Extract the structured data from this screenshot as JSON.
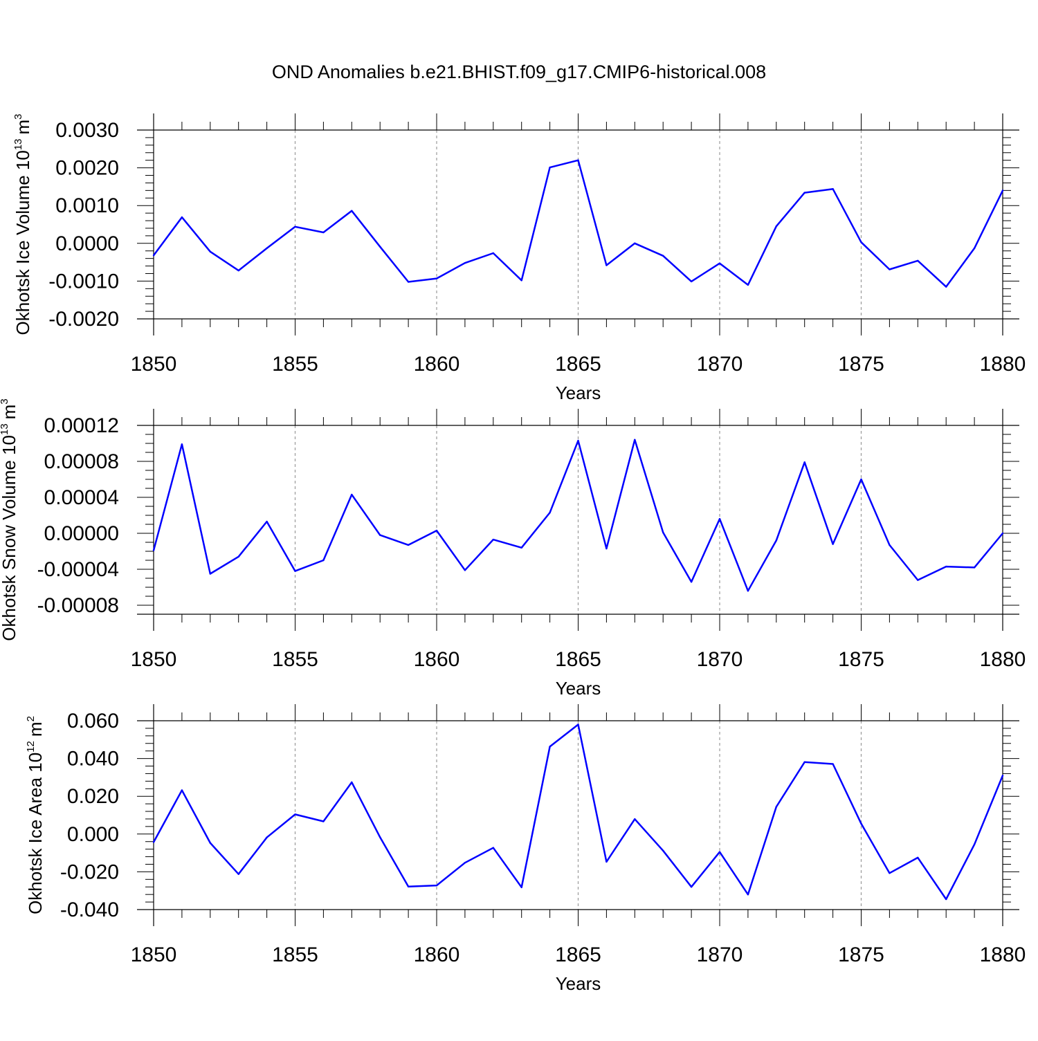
{
  "title": "OND Anomalies b.e21.BHIST.f09_g17.CMIP6-historical.008",
  "colors": {
    "line": "#0000ff",
    "grid": "#999999",
    "axis": "#000000"
  },
  "chart_data": [
    {
      "type": "line",
      "name": "ice-volume",
      "ylabel": {
        "text": "Okhotsk Ice Volume 10",
        "exponent": "13",
        "unit": "m",
        "unit_exponent": "3"
      },
      "xlabel": "Years",
      "xlim": [
        1850,
        1880
      ],
      "ylim": [
        -0.002,
        0.003
      ],
      "x_ticks": [
        "1850",
        "1855",
        "1860",
        "1865",
        "1870",
        "1875",
        "1880"
      ],
      "y_ticks": [
        {
          "value": 0.003,
          "label": "0.0030"
        },
        {
          "value": 0.002,
          "label": "0.0020"
        },
        {
          "value": 0.001,
          "label": "0.0010"
        },
        {
          "value": 0.0,
          "label": "0.0000"
        },
        {
          "value": -0.001,
          "label": "-0.0010"
        },
        {
          "value": -0.002,
          "label": "-0.0020"
        }
      ],
      "y_minor_step": 0.0002,
      "x": [
        1850,
        1851,
        1852,
        1853,
        1854,
        1855,
        1856,
        1857,
        1858,
        1859,
        1860,
        1861,
        1862,
        1863,
        1864,
        1865,
        1866,
        1867,
        1868,
        1869,
        1870,
        1871,
        1872,
        1873,
        1874,
        1875,
        1876,
        1877,
        1878,
        1879,
        1880
      ],
      "values": [
        -0.00032,
        0.00069,
        -0.00022,
        -0.00072,
        -0.00013,
        0.00044,
        0.00029,
        0.00086,
        -9e-05,
        -0.00102,
        -0.00093,
        -0.00052,
        -0.00026,
        -0.00098,
        0.00201,
        0.0022,
        -0.00058,
        0.0,
        -0.00033,
        -0.00101,
        -0.00053,
        -0.0011,
        0.00045,
        0.00134,
        0.00144,
        3e-05,
        -0.00069,
        -0.00046,
        -0.00115,
        -0.00013,
        0.0014
      ]
    },
    {
      "type": "line",
      "name": "snow-volume",
      "ylabel": {
        "text": "Okhotsk Snow Volume 10",
        "exponent": "13",
        "unit": "m",
        "unit_exponent": "3"
      },
      "xlabel": "Years",
      "xlim": [
        1850,
        1880
      ],
      "ylim": [
        -9e-05,
        0.00012
      ],
      "x_ticks": [
        "1850",
        "1855",
        "1860",
        "1865",
        "1870",
        "1875",
        "1880"
      ],
      "y_ticks": [
        {
          "value": 0.00012,
          "label": "0.00012"
        },
        {
          "value": 8e-05,
          "label": "0.00008"
        },
        {
          "value": 4e-05,
          "label": "0.00004"
        },
        {
          "value": 0.0,
          "label": "0.00000"
        },
        {
          "value": -4e-05,
          "label": "-0.00004"
        },
        {
          "value": -8e-05,
          "label": "-0.00008"
        }
      ],
      "y_minor_step": 1e-05,
      "x": [
        1850,
        1851,
        1852,
        1853,
        1854,
        1855,
        1856,
        1857,
        1858,
        1859,
        1860,
        1861,
        1862,
        1863,
        1864,
        1865,
        1866,
        1867,
        1868,
        1869,
        1870,
        1871,
        1872,
        1873,
        1874,
        1875,
        1876,
        1877,
        1878,
        1879,
        1880
      ],
      "values": [
        -1.9e-05,
        9.9e-05,
        -4.5e-05,
        -2.6e-05,
        1.3e-05,
        -4.2e-05,
        -3e-05,
        4.3e-05,
        -2e-06,
        -1.3e-05,
        3e-06,
        -4.1e-05,
        -7e-06,
        -1.6e-05,
        2.3e-05,
        0.000103,
        -1.7e-05,
        0.000104,
        1e-06,
        -5.4e-05,
        1.6e-05,
        -6.4e-05,
        -8e-06,
        7.9e-05,
        -1.2e-05,
        6e-05,
        -1.3e-05,
        -5.2e-05,
        -3.7e-05,
        -3.8e-05,
        0.0
      ]
    },
    {
      "type": "line",
      "name": "ice-area",
      "ylabel": {
        "text": "Okhotsk Ice Area 10",
        "exponent": "12",
        "unit": "m",
        "unit_exponent": "2"
      },
      "xlabel": "Years",
      "xlim": [
        1850,
        1880
      ],
      "ylim": [
        -0.04,
        0.06
      ],
      "x_ticks": [
        "1850",
        "1855",
        "1860",
        "1865",
        "1870",
        "1875",
        "1880"
      ],
      "y_ticks": [
        {
          "value": 0.06,
          "label": "0.060"
        },
        {
          "value": 0.04,
          "label": "0.040"
        },
        {
          "value": 0.02,
          "label": "0.020"
        },
        {
          "value": 0.0,
          "label": "0.000"
        },
        {
          "value": -0.02,
          "label": "-0.020"
        },
        {
          "value": -0.04,
          "label": "-0.040"
        }
      ],
      "y_minor_step": 0.004,
      "x": [
        1850,
        1851,
        1852,
        1853,
        1854,
        1855,
        1856,
        1857,
        1858,
        1859,
        1860,
        1861,
        1862,
        1863,
        1864,
        1865,
        1866,
        1867,
        1868,
        1869,
        1870,
        1871,
        1872,
        1873,
        1874,
        1875,
        1876,
        1877,
        1878,
        1879,
        1880
      ],
      "values": [
        -0.0043,
        0.0232,
        -0.0047,
        -0.0212,
        -0.0018,
        0.0104,
        0.0067,
        0.0274,
        -0.0017,
        -0.0278,
        -0.0272,
        -0.0152,
        -0.0073,
        -0.0282,
        0.0463,
        0.058,
        -0.0147,
        0.0079,
        -0.0088,
        -0.028,
        -0.0095,
        -0.032,
        0.0144,
        0.0381,
        0.0371,
        0.0055,
        -0.0207,
        -0.0125,
        -0.0345,
        -0.0055,
        0.031
      ]
    }
  ]
}
